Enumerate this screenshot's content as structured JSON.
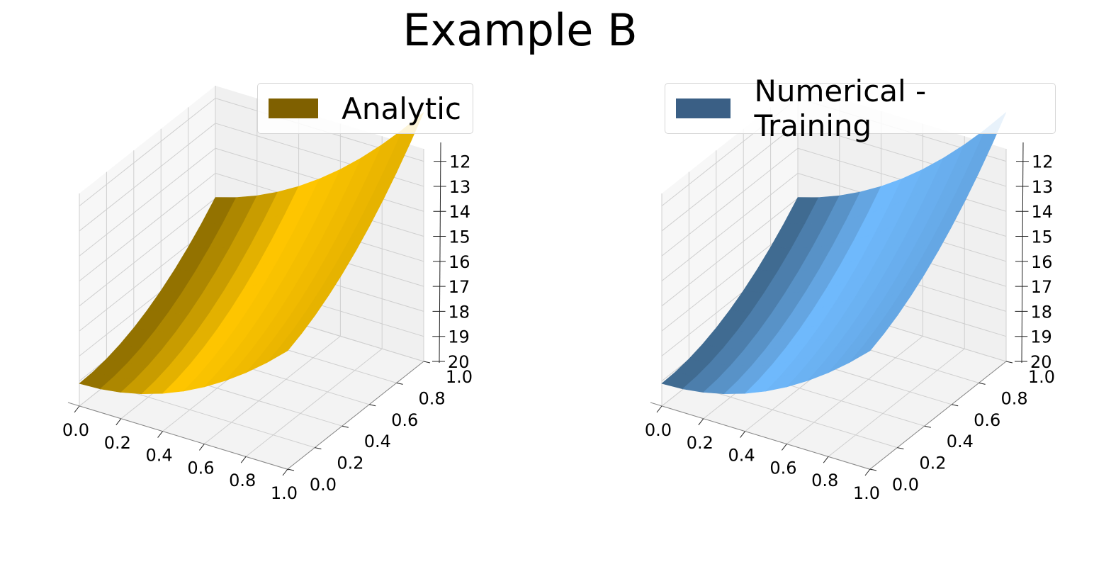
{
  "title": "Example B",
  "chart_data": [
    {
      "type": "surface3d",
      "legend": "Analytic",
      "legend_placement": "top-right",
      "color": "#f2bc00",
      "legend_color": "#7f6000",
      "x_ticks": [
        "0.0",
        "0.2",
        "0.4",
        "0.6",
        "0.8",
        "1.0"
      ],
      "y_ticks": [
        "0.0",
        "0.2",
        "0.4",
        "0.6",
        "0.8",
        "1.0"
      ],
      "z_ticks": [
        "-12",
        "-13",
        "-14",
        "-15",
        "-16",
        "-17",
        "-18",
        "-19",
        "-20"
      ],
      "xlim": [
        0,
        1
      ],
      "ylim": [
        0,
        1
      ],
      "zlim": [
        -20,
        -11.5
      ],
      "grid": true
    },
    {
      "type": "surface3d",
      "legend": "Numerical - Training",
      "legend_placement": "top-right",
      "color": "#6ab0f0",
      "legend_color": "#3a5f85",
      "x_ticks": [
        "0.0",
        "0.2",
        "0.4",
        "0.6",
        "0.8",
        "1.0"
      ],
      "y_ticks": [
        "0.0",
        "0.2",
        "0.4",
        "0.6",
        "0.8",
        "1.0"
      ],
      "z_ticks": [
        "-12",
        "-13",
        "-14",
        "-15",
        "-16",
        "-17",
        "-18",
        "-19",
        "-20"
      ],
      "xlim": [
        0,
        1
      ],
      "ylim": [
        0,
        1
      ],
      "zlim": [
        -20,
        -11.5
      ],
      "grid": true
    }
  ]
}
